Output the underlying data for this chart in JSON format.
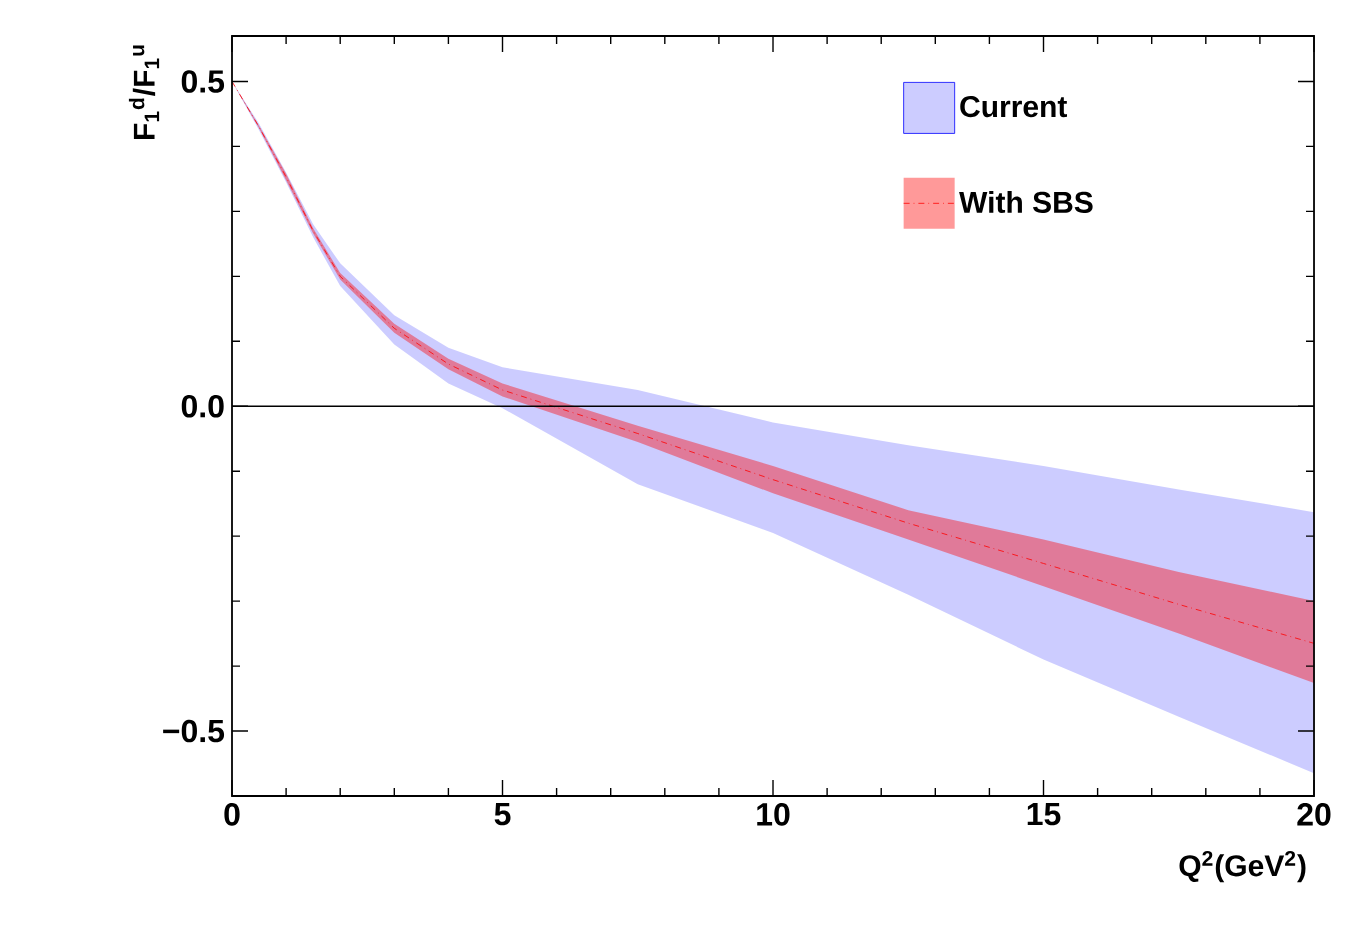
{
  "chart_data": {
    "type": "line",
    "xlabel": "Q$^{2}$(GeV$^{2}$)",
    "ylabel": "F$_{1}$$^{d}$/F$_{1}$$^{u}$",
    "x": [
      0,
      0.5,
      1,
      1.5,
      2,
      3,
      4,
      5,
      7.5,
      10,
      12.5,
      15,
      17.5,
      20
    ],
    "series": [
      {
        "name": "Current",
        "color": "#0000ff",
        "values": [
          null,
          null,
          null,
          null,
          null,
          null,
          null,
          null,
          null,
          null,
          null,
          null,
          null,
          null
        ],
        "lower": [
          0.5,
          0.425,
          0.345,
          0.26,
          0.185,
          0.095,
          0.035,
          -0.003,
          -0.12,
          -0.195,
          -0.29,
          -0.39,
          -0.478,
          -0.565
        ],
        "upper": [
          0.5,
          0.435,
          0.36,
          0.28,
          0.22,
          0.14,
          0.09,
          0.06,
          0.025,
          -0.025,
          -0.06,
          -0.092,
          -0.128,
          -0.163
        ]
      },
      {
        "name": "With SBS",
        "color": "#ff0000",
        "line_style": "dashed",
        "values": [
          0.5,
          0.43,
          0.353,
          0.27,
          0.2,
          0.12,
          0.065,
          0.025,
          -0.042,
          -0.113,
          -0.18,
          -0.242,
          -0.305,
          -0.365
        ],
        "lower": [
          0.5,
          0.428,
          0.348,
          0.266,
          0.195,
          0.113,
          0.057,
          0.015,
          -0.055,
          -0.134,
          -0.205,
          -0.277,
          -0.35,
          -0.426
        ],
        "upper": [
          0.5,
          0.432,
          0.358,
          0.274,
          0.205,
          0.127,
          0.073,
          0.035,
          -0.03,
          -0.092,
          -0.16,
          -0.205,
          -0.255,
          -0.3
        ]
      }
    ],
    "xlim": [
      0,
      20
    ],
    "xticks": [
      0,
      5,
      10,
      15,
      20
    ],
    "ylim": [
      -0.6,
      0.57
    ],
    "yticks": [
      {
        "value": -0.5,
        "label": "−0.5"
      },
      {
        "value": 0,
        "label": "0.0"
      },
      {
        "value": 0.5,
        "label": "0.5"
      }
    ],
    "ref_lines": [
      {
        "axis": "y",
        "value": 0,
        "color": "#000000"
      }
    ],
    "legend": "top right",
    "grid": false,
    "marker": "none"
  }
}
